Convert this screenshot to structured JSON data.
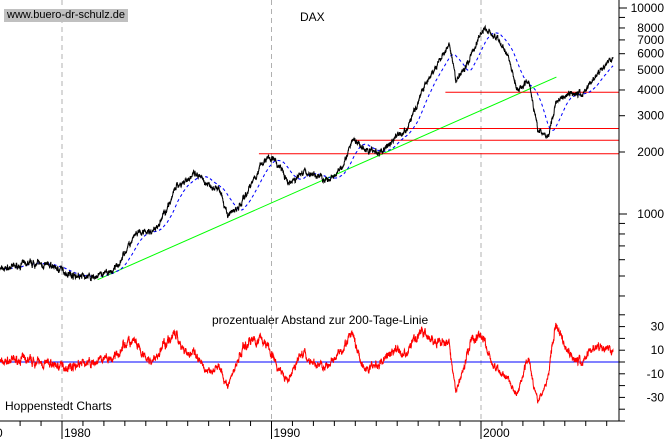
{
  "chart_data": {
    "type": "line",
    "title": "DAX",
    "subtitle": "prozentualer Abstand zur 200-Tage-Linie",
    "source": "Hoppenstedt Charts",
    "watermark": "www.buero-dr-schulz.de",
    "x_ticks": [
      "1980",
      "1990",
      "2000"
    ],
    "x_range": [
      1977,
      2006.5
    ],
    "y_scale": "log",
    "y_range": [
      340,
      10900
    ],
    "y_ticks": [
      "10000",
      "8000",
      "7000",
      "6000",
      "5000",
      "4000",
      "3000",
      "2000",
      "1000"
    ],
    "osc_ticks": [
      "30",
      "10",
      "-10",
      "-30"
    ],
    "osc_range": [
      -58,
      45
    ],
    "grid": "dashed vertical lines at decades",
    "series": [
      {
        "name": "DAX",
        "color": "#000000",
        "points": [
          [
            1977.0,
            535
          ],
          [
            1978.5,
            578
          ],
          [
            1979.5,
            560
          ],
          [
            1980.5,
            505
          ],
          [
            1981.5,
            490
          ],
          [
            1982.5,
            535
          ],
          [
            1983.5,
            790
          ],
          [
            1984.5,
            835
          ],
          [
            1985.5,
            1380
          ],
          [
            1986.3,
            1545
          ],
          [
            1987.5,
            1310
          ],
          [
            1987.9,
            990
          ],
          [
            1988.5,
            1100
          ],
          [
            1989.5,
            1730
          ],
          [
            1989.9,
            1930
          ],
          [
            1990.5,
            1635
          ],
          [
            1990.8,
            1380
          ],
          [
            1991.5,
            1600
          ],
          [
            1992.5,
            1500
          ],
          [
            1992.8,
            1430
          ],
          [
            1993.5,
            1820
          ],
          [
            1993.9,
            2285
          ],
          [
            1994.5,
            2040
          ],
          [
            1995.2,
            1975
          ],
          [
            1995.9,
            2355
          ],
          [
            1996.5,
            2610
          ],
          [
            1997.3,
            4225
          ],
          [
            1997.8,
            5000
          ],
          [
            1998.5,
            6600
          ],
          [
            1998.8,
            4470
          ],
          [
            1999.3,
            5280
          ],
          [
            1999.9,
            7150
          ],
          [
            2000.2,
            8000
          ],
          [
            2000.8,
            7000
          ],
          [
            2001.3,
            5900
          ],
          [
            2001.7,
            4000
          ],
          [
            2002.3,
            4470
          ],
          [
            2002.7,
            2560
          ],
          [
            2003.2,
            2340
          ],
          [
            2003.6,
            3570
          ],
          [
            2004.3,
            3900
          ],
          [
            2004.8,
            3780
          ],
          [
            2005.5,
            4730
          ],
          [
            2006.3,
            5780
          ]
        ]
      }
    ],
    "moving_average": {
      "label": "200-Tage-Linie",
      "color": "#0000ff",
      "style": "dashed"
    },
    "oscillator": {
      "color": "#ff0000",
      "zero_line_color": "#0000ff"
    },
    "trendline": {
      "color": "#00ff00",
      "from": [
        1981.7,
        480
      ],
      "to": [
        2003.6,
        4620
      ]
    },
    "horizontal_lines": {
      "color": "#ff0000",
      "levels": [
        {
          "value": 3900,
          "from": 1998.3
        },
        {
          "value": 2600,
          "from": 1996.1
        },
        {
          "value": 2280,
          "from": 1993.8
        },
        {
          "value": 1960,
          "from": 1989.4
        }
      ]
    }
  }
}
